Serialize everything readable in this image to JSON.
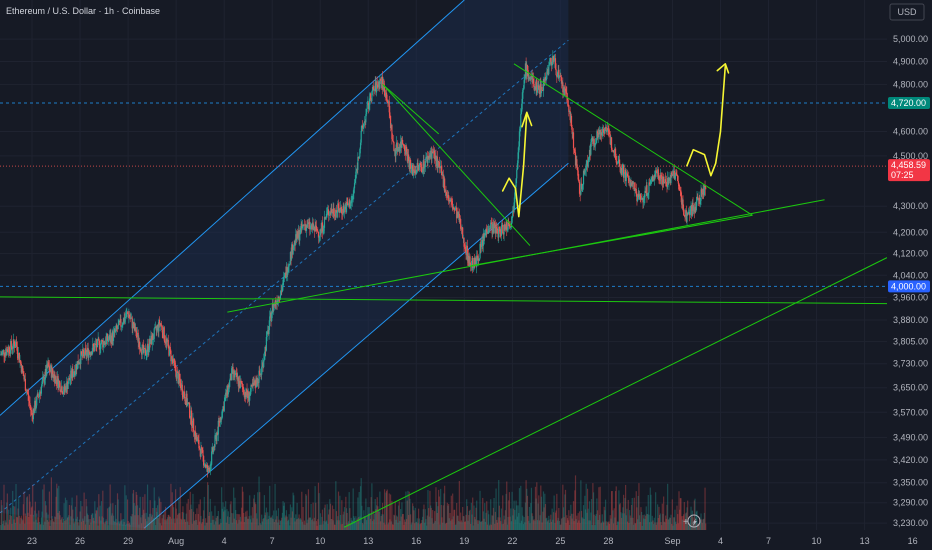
{
  "chart_data": {
    "type": "candlestick",
    "title": "Ethereum / U.S. Dollar · 1h · Coinbase",
    "currency": "USD",
    "y_axis": {
      "scale": "log",
      "range": [
        3210,
        5180
      ],
      "ticks": [
        "5,000.00",
        "4,900.00",
        "4,800.00",
        "4,600.00",
        "4,500.00",
        "4,300.00",
        "4,200.00",
        "4,120.00",
        "4,040.00",
        "3,960.00",
        "3,880.00",
        "3,805.00",
        "3,730.00",
        "3,650.00",
        "3,570.00",
        "3,490.00",
        "3,420.00",
        "3,350.00",
        "3,290.00",
        "3,230.00"
      ],
      "tick_values": [
        5000,
        4900,
        4800,
        4600,
        4500,
        4300,
        4200,
        4120,
        4040,
        3960,
        3880,
        3805,
        3730,
        3650,
        3570,
        3490,
        3420,
        3350,
        3290,
        3230
      ]
    },
    "x_axis": {
      "range": [
        0,
        55.4
      ],
      "labels": [
        {
          "text": "23",
          "day": 2
        },
        {
          "text": "26",
          "day": 5
        },
        {
          "text": "29",
          "day": 8
        },
        {
          "text": "Aug",
          "day": 11
        },
        {
          "text": "4",
          "day": 14
        },
        {
          "text": "7",
          "day": 17
        },
        {
          "text": "10",
          "day": 20
        },
        {
          "text": "13",
          "day": 23
        },
        {
          "text": "16",
          "day": 26
        },
        {
          "text": "19",
          "day": 29
        },
        {
          "text": "22",
          "day": 32
        },
        {
          "text": "25",
          "day": 35
        },
        {
          "text": "28",
          "day": 38
        },
        {
          "text": "Sep",
          "day": 42
        },
        {
          "text": "4",
          "day": 45
        },
        {
          "text": "7",
          "day": 48
        },
        {
          "text": "10",
          "day": 51
        },
        {
          "text": "13",
          "day": 54
        },
        {
          "text": "16",
          "day": 57
        }
      ]
    },
    "price_path": [
      [
        0,
        3760
      ],
      [
        1,
        3800
      ],
      [
        2,
        3560
      ],
      [
        3,
        3720
      ],
      [
        4,
        3640
      ],
      [
        5,
        3750
      ],
      [
        6,
        3790
      ],
      [
        7,
        3820
      ],
      [
        8,
        3905
      ],
      [
        9,
        3760
      ],
      [
        10,
        3870
      ],
      [
        11,
        3700
      ],
      [
        11.7,
        3600
      ],
      [
        12.3,
        3480
      ],
      [
        13,
        3380
      ],
      [
        13.8,
        3560
      ],
      [
        14.5,
        3700
      ],
      [
        15.5,
        3620
      ],
      [
        16.3,
        3700
      ],
      [
        17,
        3920
      ],
      [
        17.6,
        3990
      ],
      [
        18.3,
        4150
      ],
      [
        19,
        4230
      ],
      [
        20,
        4200
      ],
      [
        20.5,
        4280
      ],
      [
        21.5,
        4290
      ],
      [
        22,
        4320
      ],
      [
        22.6,
        4600
      ],
      [
        23.2,
        4760
      ],
      [
        23.8,
        4820
      ],
      [
        24.2,
        4740
      ],
      [
        24.6,
        4520
      ],
      [
        25.2,
        4560
      ],
      [
        25.7,
        4440
      ],
      [
        26.4,
        4460
      ],
      [
        27,
        4520
      ],
      [
        27.6,
        4420
      ],
      [
        28,
        4330
      ],
      [
        28.6,
        4260
      ],
      [
        29.3,
        4090
      ],
      [
        29.7,
        4080
      ],
      [
        30.5,
        4230
      ],
      [
        31.2,
        4200
      ],
      [
        32,
        4250
      ],
      [
        32.8,
        4870
      ],
      [
        33.3,
        4800
      ],
      [
        33.8,
        4780
      ],
      [
        34.5,
        4920
      ],
      [
        35,
        4810
      ],
      [
        35.5,
        4720
      ],
      [
        36.2,
        4350
      ],
      [
        37,
        4560
      ],
      [
        37.8,
        4620
      ],
      [
        38.3,
        4530
      ],
      [
        38.8,
        4450
      ],
      [
        39.4,
        4390
      ],
      [
        40,
        4320
      ],
      [
        40.5,
        4370
      ],
      [
        41,
        4440
      ],
      [
        41.6,
        4390
      ],
      [
        42.2,
        4430
      ],
      [
        42.8,
        4260
      ],
      [
        43.5,
        4310
      ],
      [
        44.1,
        4380
      ]
    ],
    "last_price": "4,458.59",
    "countdown": "07:25",
    "level_tags": [
      {
        "label": "4,720.00",
        "value": 4720,
        "color": "#00897b"
      },
      {
        "label": "4,000.00",
        "value": 4000,
        "color": "#2962ff"
      }
    ]
  },
  "colors": {
    "up": "#26a69a",
    "down": "#ef5350",
    "trend": "#1cc80f",
    "channel": "#2196f3",
    "arrow": "#f6f633"
  }
}
